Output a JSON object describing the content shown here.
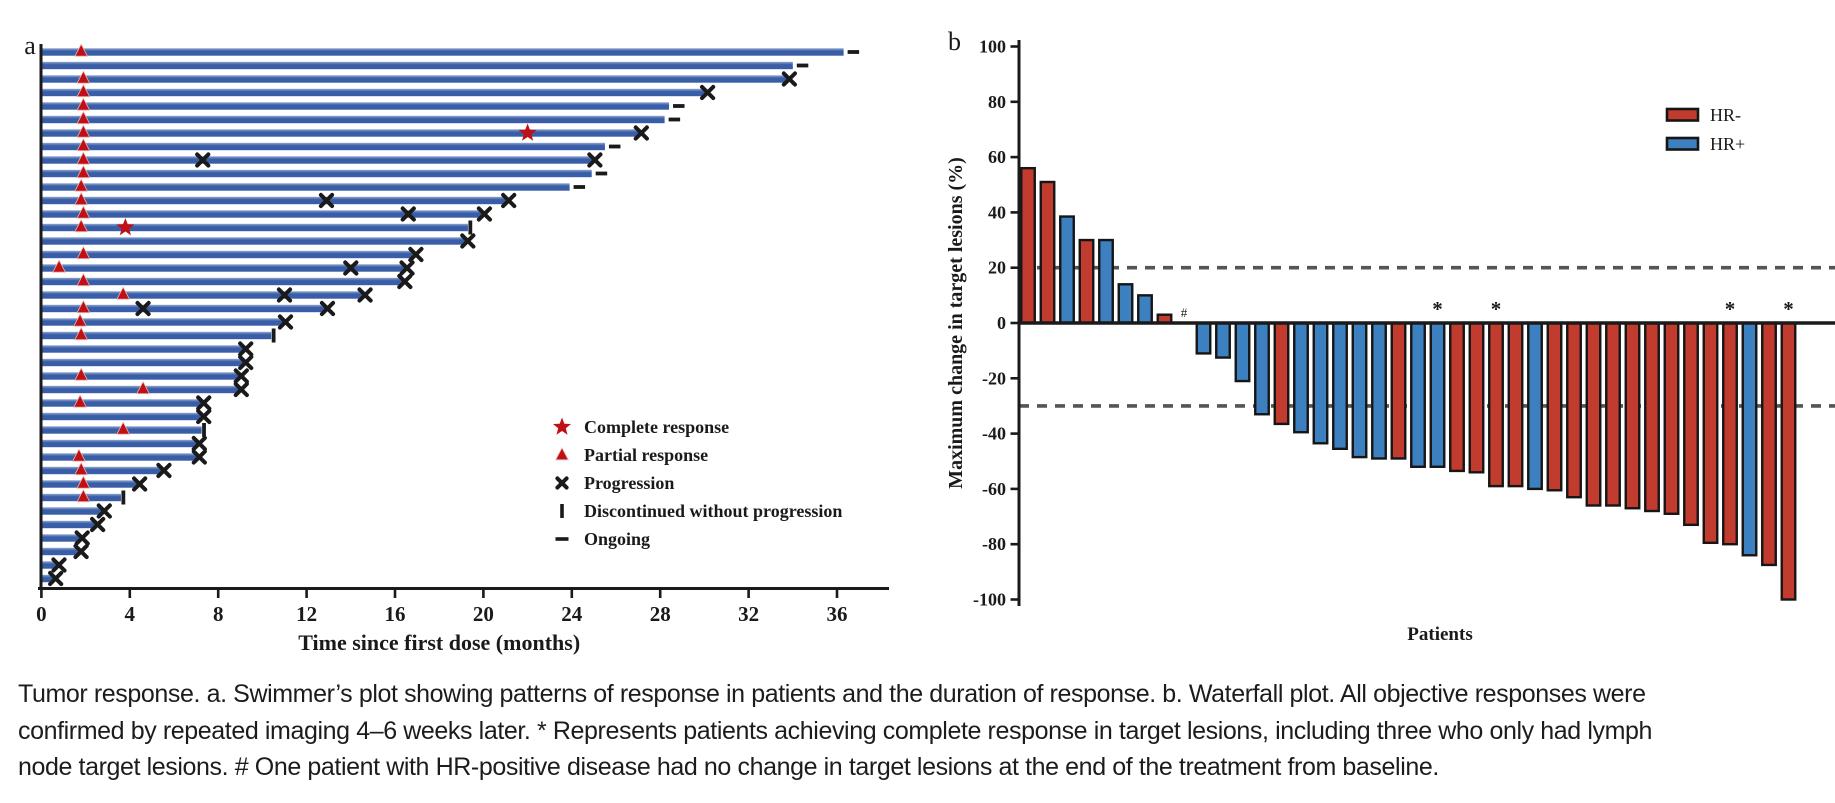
{
  "figure": {
    "colors": {
      "swimmer_bar": "#3a5da8",
      "swimmer_bar_light": "#8ea6cf",
      "hr_neg": "#c13b2e",
      "hr_pos": "#3d80c0",
      "marker_red": "#c01015",
      "ink": "#1a1a1a",
      "dash_gray": "#555555"
    },
    "panel_a": {
      "label": "a",
      "x_axis": {
        "title": "Time since first dose (months)",
        "ticks": [
          0,
          4,
          8,
          12,
          16,
          20,
          24,
          28,
          32,
          36
        ],
        "unit": "months"
      },
      "legend": [
        {
          "marker": "star",
          "label": "Complete response"
        },
        {
          "marker": "triangle",
          "label": "Partial response"
        },
        {
          "marker": "x",
          "label": "Progression"
        },
        {
          "marker": "vbar",
          "label": "Discontinued without progression"
        },
        {
          "marker": "dash",
          "label": "Ongoing"
        }
      ],
      "chart_data": {
        "type": "swimmer",
        "xlabel": "Time since first dose (months)",
        "xlim": [
          0,
          38
        ],
        "patients": [
          {
            "duration": 36.3,
            "end": "ongoing",
            "pr": 1.8
          },
          {
            "duration": 34.0,
            "end": "ongoing"
          },
          {
            "duration": 33.8,
            "end": "progression",
            "pr": 1.9
          },
          {
            "duration": 30.1,
            "end": "progression",
            "pr": 1.9
          },
          {
            "duration": 28.4,
            "end": "ongoing",
            "pr": 1.9
          },
          {
            "duration": 28.2,
            "end": "ongoing",
            "pr": 1.9
          },
          {
            "duration": 27.1,
            "end": "progression",
            "pr": 1.9,
            "cr": 22.0
          },
          {
            "duration": 25.5,
            "end": "ongoing",
            "pr": 1.9
          },
          {
            "duration": 25.0,
            "end": "progression",
            "pr": 1.9,
            "prog": [
              7.3
            ]
          },
          {
            "duration": 24.9,
            "end": "ongoing",
            "pr": 1.9
          },
          {
            "duration": 23.9,
            "end": "ongoing",
            "pr": 1.8
          },
          {
            "duration": 21.1,
            "end": "progression",
            "pr": 1.8,
            "prog": [
              12.9
            ]
          },
          {
            "duration": 20.0,
            "end": "progression",
            "pr": 1.9,
            "prog": [
              16.6
            ]
          },
          {
            "duration": 19.3,
            "end": "discontinued",
            "pr": 1.8,
            "cr": 3.8
          },
          {
            "duration": 19.25,
            "end": "progression"
          },
          {
            "duration": 16.9,
            "end": "progression",
            "pr": 1.9
          },
          {
            "duration": 16.5,
            "end": "progression",
            "pr": 0.8,
            "prog": [
              14.0
            ]
          },
          {
            "duration": 16.4,
            "end": "progression",
            "pr": 1.9
          },
          {
            "duration": 14.6,
            "end": "progression",
            "pr": 3.7,
            "prog": [
              11.0
            ]
          },
          {
            "duration": 12.9,
            "end": "progression",
            "pr": 1.9,
            "prog": [
              4.6
            ]
          },
          {
            "duration": 11.0,
            "end": "progression",
            "pr": 1.75
          },
          {
            "duration": 10.4,
            "end": "discontinued",
            "pr": 1.8
          },
          {
            "duration": 9.2,
            "end": "progression"
          },
          {
            "duration": 9.2,
            "end": "progression"
          },
          {
            "duration": 9.0,
            "end": "progression",
            "pr": 1.8
          },
          {
            "duration": 9.0,
            "end": "progression",
            "pr": 4.6
          },
          {
            "duration": 7.3,
            "end": "progression",
            "pr": 1.75
          },
          {
            "duration": 7.3,
            "end": "progression"
          },
          {
            "duration": 7.25,
            "end": "discontinued",
            "pr": 3.7
          },
          {
            "duration": 7.1,
            "end": "progression"
          },
          {
            "duration": 7.1,
            "end": "progression",
            "pr": 1.7
          },
          {
            "duration": 5.5,
            "end": "progression",
            "pr": 1.8
          },
          {
            "duration": 4.4,
            "end": "progression",
            "pr": 1.9
          },
          {
            "duration": 3.6,
            "end": "discontinued",
            "pr": 1.9
          },
          {
            "duration": 2.8,
            "end": "progression"
          },
          {
            "duration": 2.5,
            "end": "progression"
          },
          {
            "duration": 1.8,
            "end": "progression"
          },
          {
            "duration": 1.75,
            "end": "progression"
          },
          {
            "duration": 0.75,
            "end": "progression"
          },
          {
            "duration": 0.6,
            "end": "progression"
          }
        ]
      }
    },
    "panel_b": {
      "label": "b",
      "y_axis": {
        "title": "Maximum change in target lesions (%)",
        "ticks": [
          100,
          80,
          60,
          40,
          20,
          0,
          -20,
          -40,
          -60,
          -80,
          -100
        ]
      },
      "x_axis": {
        "title": "Patients"
      },
      "reference_lines": [
        20,
        -30
      ],
      "legend": [
        {
          "label": "HR-",
          "group": "HR-"
        },
        {
          "label": "HR+",
          "group": "HR+"
        }
      ],
      "chart_data": {
        "type": "bar",
        "ylabel": "Maximum change in target lesions (%)",
        "xlabel": "Patients",
        "ylim": [
          -100,
          100
        ],
        "bars": [
          {
            "value": 56,
            "group": "HR-"
          },
          {
            "value": 51,
            "group": "HR-"
          },
          {
            "value": 38.5,
            "group": "HR+"
          },
          {
            "value": 30,
            "group": "HR-"
          },
          {
            "value": 30,
            "group": "HR+"
          },
          {
            "value": 14,
            "group": "HR+"
          },
          {
            "value": 10,
            "group": "HR+"
          },
          {
            "value": 3,
            "group": "HR-"
          },
          {
            "value": 0,
            "group": "HR+",
            "annotation": "#"
          },
          {
            "value": -11,
            "group": "HR+"
          },
          {
            "value": -12.5,
            "group": "HR+"
          },
          {
            "value": -21,
            "group": "HR+"
          },
          {
            "value": -33,
            "group": "HR+"
          },
          {
            "value": -36.5,
            "group": "HR-"
          },
          {
            "value": -39.5,
            "group": "HR+"
          },
          {
            "value": -43.5,
            "group": "HR+"
          },
          {
            "value": -45.5,
            "group": "HR+"
          },
          {
            "value": -48.5,
            "group": "HR+"
          },
          {
            "value": -49,
            "group": "HR+"
          },
          {
            "value": -49,
            "group": "HR-"
          },
          {
            "value": -52,
            "group": "HR+"
          },
          {
            "value": -52,
            "group": "HR+",
            "annotation": "*"
          },
          {
            "value": -53.5,
            "group": "HR-"
          },
          {
            "value": -54,
            "group": "HR-"
          },
          {
            "value": -59,
            "group": "HR-",
            "annotation": "*"
          },
          {
            "value": -59,
            "group": "HR-"
          },
          {
            "value": -60,
            "group": "HR+"
          },
          {
            "value": -60.5,
            "group": "HR-"
          },
          {
            "value": -63,
            "group": "HR-"
          },
          {
            "value": -66,
            "group": "HR-"
          },
          {
            "value": -66,
            "group": "HR-"
          },
          {
            "value": -67,
            "group": "HR-"
          },
          {
            "value": -68,
            "group": "HR-"
          },
          {
            "value": -69,
            "group": "HR-"
          },
          {
            "value": -73,
            "group": "HR-"
          },
          {
            "value": -79.5,
            "group": "HR-"
          },
          {
            "value": -80,
            "group": "HR-",
            "annotation": "*"
          },
          {
            "value": -84,
            "group": "HR+"
          },
          {
            "value": -87.5,
            "group": "HR-"
          },
          {
            "value": -100,
            "group": "HR-",
            "annotation": "*"
          }
        ]
      }
    },
    "caption": {
      "lines": [
        "Tumor response. a. Swimmer’s plot showing patterns of response in patients and the duration of response. b. Waterfall plot. All objective responses were",
        "confirmed by repeated imaging 4–6 weeks later. * Represents patients achieving complete response in target lesions, including three who only had lymph",
        "node target lesions. # One patient with HR-positive disease had no change in target lesions at the end of the treatment from baseline."
      ]
    }
  }
}
